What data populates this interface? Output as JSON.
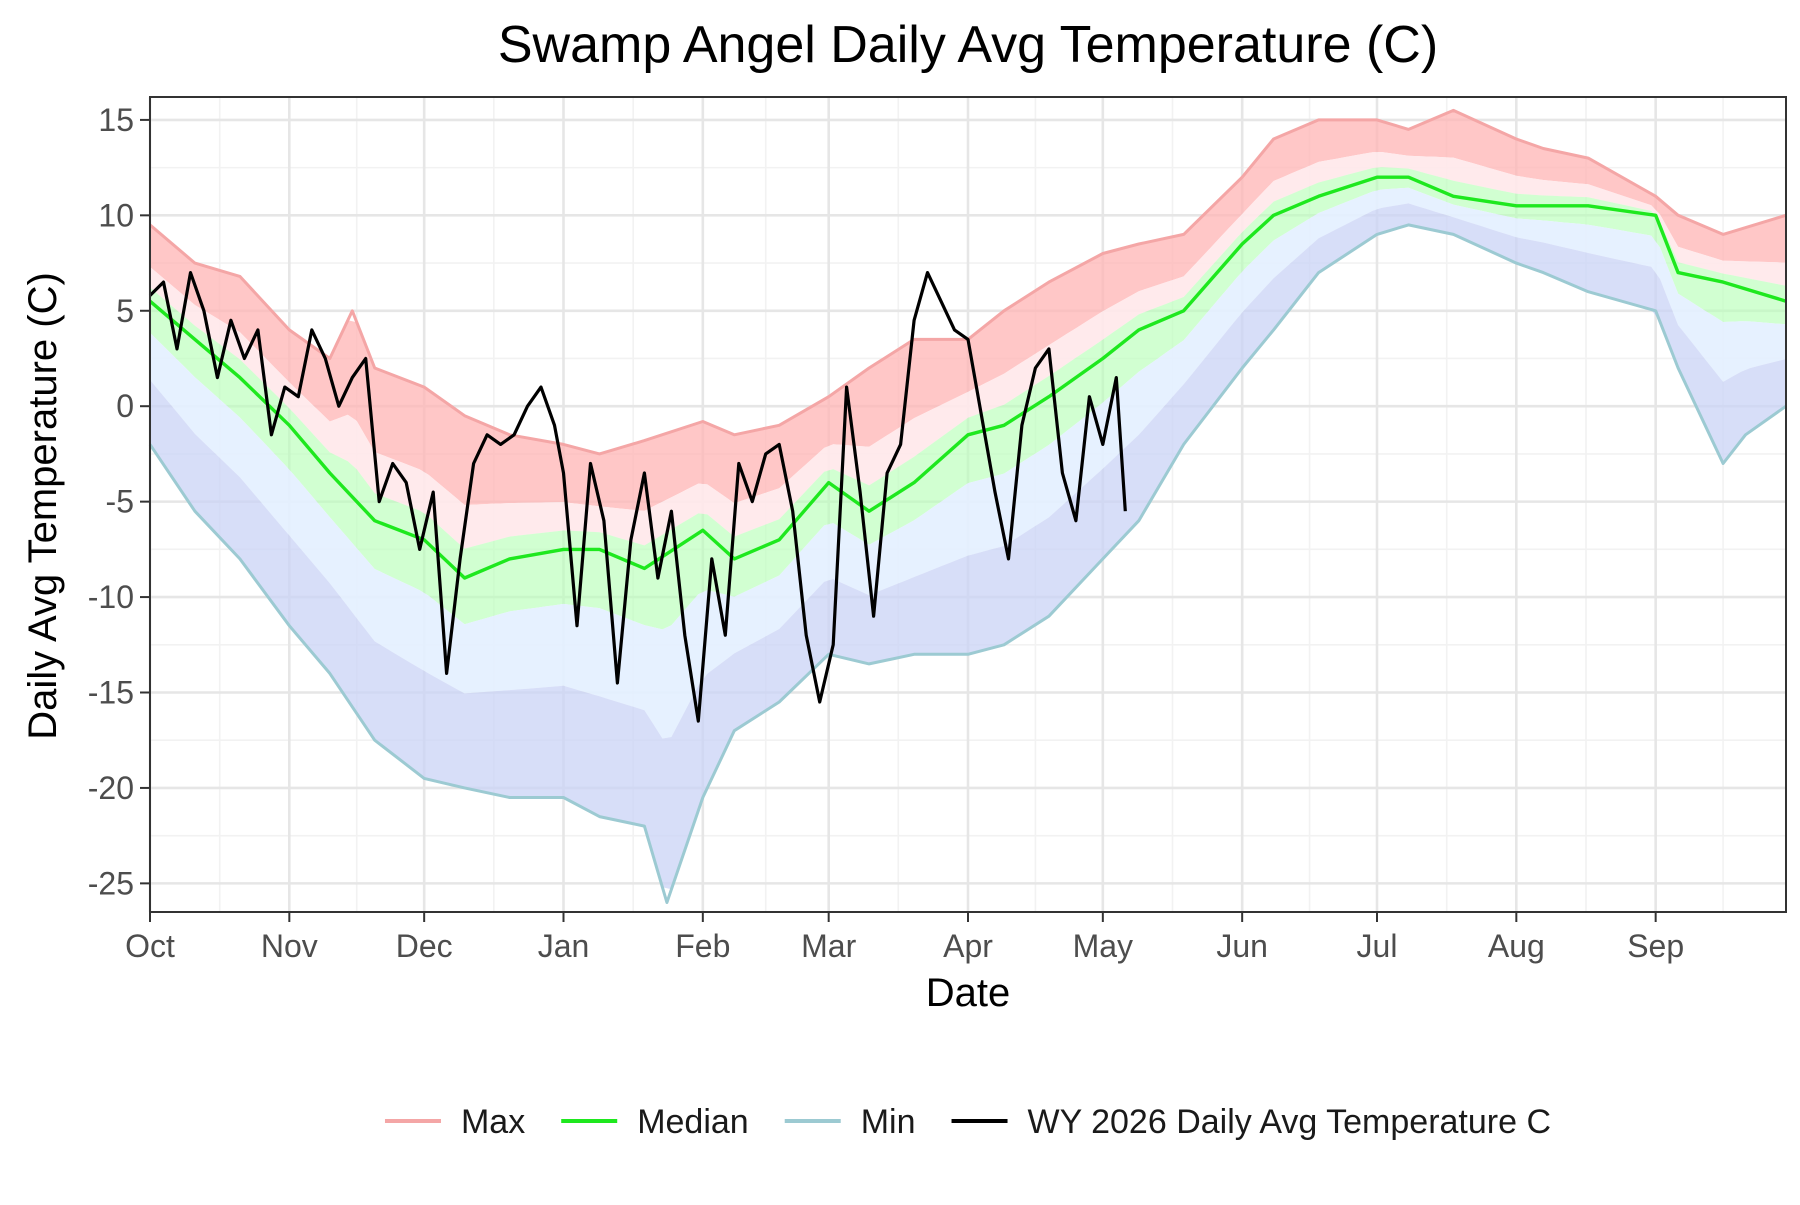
{
  "chart_data": {
    "type": "line",
    "title": "Swamp Angel Daily Avg Temperature (C)",
    "xlabel": "Date",
    "ylabel": "Daily Avg Temperature (C)",
    "x_units": "day of water year (Oct 1 = day 0)",
    "xlim": [
      0,
      364
    ],
    "ylim": [
      -26.5,
      16.2
    ],
    "y_ticks": [
      15,
      10,
      5,
      0,
      -5,
      -10,
      -15,
      -20,
      -25
    ],
    "y_tick_labels": [
      "15",
      "10",
      "5",
      "0",
      "-5",
      "-10",
      "-15",
      "-20",
      "-25"
    ],
    "x_ticks": [
      0,
      31,
      61,
      92,
      123,
      151,
      182,
      212,
      243,
      273,
      304,
      335
    ],
    "x_tick_labels": [
      "Oct",
      "Nov",
      "Dec",
      "Jan",
      "Feb",
      "Mar",
      "Apr",
      "May",
      "Jun",
      "Jul",
      "Aug",
      "Sep"
    ],
    "grid": true,
    "legend_position": "bottom",
    "legend": [
      "Max",
      "Median",
      "Min",
      "WY 2026 Daily Avg Temperature C"
    ],
    "colors": {
      "max": "#f4a6a6",
      "median": "#1ee81e",
      "min": "#9ccad2",
      "wy2026": "#000000",
      "band_max_upper": "#ffb4b4",
      "band_max_lower": "#ffe8ea",
      "band_med_upper": "#b8ffb8",
      "band_med_lower": "#e3f0ff",
      "band_min": "#c9d3f5",
      "grid_major": "#e6e6e6",
      "grid_minor": "#f2f2f2",
      "panel_border": "#333333"
    },
    "series": [
      {
        "name": "Max",
        "x": [
          0,
          10,
          20,
          31,
          40,
          45,
          50,
          61,
          70,
          80,
          92,
          100,
          110,
          123,
          130,
          140,
          151,
          160,
          170,
          182,
          190,
          200,
          212,
          220,
          230,
          243,
          250,
          260,
          273,
          280,
          290,
          304,
          310,
          320,
          335,
          340,
          350,
          364
        ],
        "y": [
          9.5,
          7.5,
          6.8,
          4.0,
          2.5,
          5.0,
          2.0,
          1.0,
          -0.5,
          -1.5,
          -2.0,
          -2.5,
          -1.8,
          -0.8,
          -1.5,
          -1.0,
          0.5,
          2.0,
          3.5,
          3.5,
          5.0,
          6.5,
          8.0,
          8.5,
          9.0,
          12.0,
          14.0,
          15.0,
          15.0,
          14.5,
          15.5,
          14.0,
          13.5,
          13.0,
          11.0,
          10.0,
          9.0,
          10.0
        ]
      },
      {
        "name": "Median",
        "x": [
          0,
          10,
          20,
          31,
          40,
          50,
          61,
          70,
          80,
          92,
          100,
          110,
          123,
          130,
          140,
          151,
          160,
          170,
          182,
          190,
          200,
          212,
          220,
          230,
          243,
          250,
          260,
          273,
          280,
          290,
          304,
          310,
          320,
          335,
          340,
          350,
          364
        ],
        "y": [
          5.5,
          3.5,
          1.5,
          -1.0,
          -3.5,
          -6.0,
          -7.0,
          -9.0,
          -8.0,
          -7.5,
          -7.5,
          -8.5,
          -6.5,
          -8.0,
          -7.0,
          -4.0,
          -5.5,
          -4.0,
          -1.5,
          -1.0,
          0.5,
          2.5,
          4.0,
          5.0,
          8.5,
          10.0,
          11.0,
          12.0,
          12.0,
          11.0,
          10.5,
          10.5,
          10.5,
          10.0,
          7.0,
          6.5,
          5.5
        ]
      },
      {
        "name": "Min",
        "x": [
          0,
          10,
          20,
          31,
          40,
          50,
          61,
          70,
          80,
          92,
          100,
          110,
          115,
          123,
          130,
          140,
          151,
          160,
          170,
          182,
          190,
          200,
          212,
          220,
          230,
          243,
          250,
          260,
          273,
          280,
          290,
          304,
          310,
          320,
          335,
          340,
          350,
          355,
          364
        ],
        "y": [
          -2.0,
          -5.5,
          -8.0,
          -11.5,
          -14.0,
          -17.5,
          -19.5,
          -20.0,
          -20.5,
          -20.5,
          -21.5,
          -22.0,
          -26.0,
          -20.5,
          -17.0,
          -15.5,
          -13.0,
          -13.5,
          -13.0,
          -13.0,
          -12.5,
          -11.0,
          -8.0,
          -6.0,
          -2.0,
          2.0,
          4.0,
          7.0,
          9.0,
          9.5,
          9.0,
          7.5,
          7.0,
          6.0,
          5.0,
          2.0,
          -3.0,
          -1.5,
          0.0
        ]
      },
      {
        "name": "WY 2026 Daily Avg Temperature C",
        "x": [
          0,
          3,
          6,
          9,
          12,
          15,
          18,
          21,
          24,
          27,
          30,
          33,
          36,
          39,
          42,
          45,
          48,
          51,
          54,
          57,
          60,
          63,
          66,
          69,
          72,
          75,
          78,
          81,
          84,
          87,
          90,
          92,
          95,
          98,
          101,
          104,
          107,
          110,
          113,
          116,
          119,
          122,
          125,
          128,
          131,
          134,
          137,
          140,
          143,
          146,
          149,
          152,
          155,
          158,
          161,
          164,
          167,
          170,
          173,
          176,
          179,
          182,
          185,
          188,
          191,
          194,
          197,
          200,
          203,
          206,
          209,
          212,
          215,
          217
        ],
        "y": [
          5.8,
          6.5,
          3.0,
          7.0,
          5.0,
          1.5,
          4.5,
          2.5,
          4.0,
          -1.5,
          1.0,
          0.5,
          4.0,
          2.5,
          0.0,
          1.5,
          2.5,
          -5.0,
          -3.0,
          -4.0,
          -7.5,
          -4.5,
          -14.0,
          -8.0,
          -3.0,
          -1.5,
          -2.0,
          -1.5,
          0.0,
          1.0,
          -1.0,
          -3.5,
          -11.5,
          -3.0,
          -6.0,
          -14.5,
          -7.0,
          -3.5,
          -9.0,
          -5.5,
          -12.0,
          -16.5,
          -8.0,
          -12.0,
          -3.0,
          -5.0,
          -2.5,
          -2.0,
          -5.5,
          -12.0,
          -15.5,
          -12.5,
          1.0,
          -4.5,
          -11.0,
          -3.5,
          -2.0,
          4.5,
          7.0,
          5.5,
          4.0,
          3.5,
          -0.5,
          -4.5,
          -8.0,
          -1.0,
          2.0,
          3.0,
          -3.5,
          -6.0,
          0.5,
          -2.0,
          1.5,
          -5.5
        ]
      }
    ]
  }
}
